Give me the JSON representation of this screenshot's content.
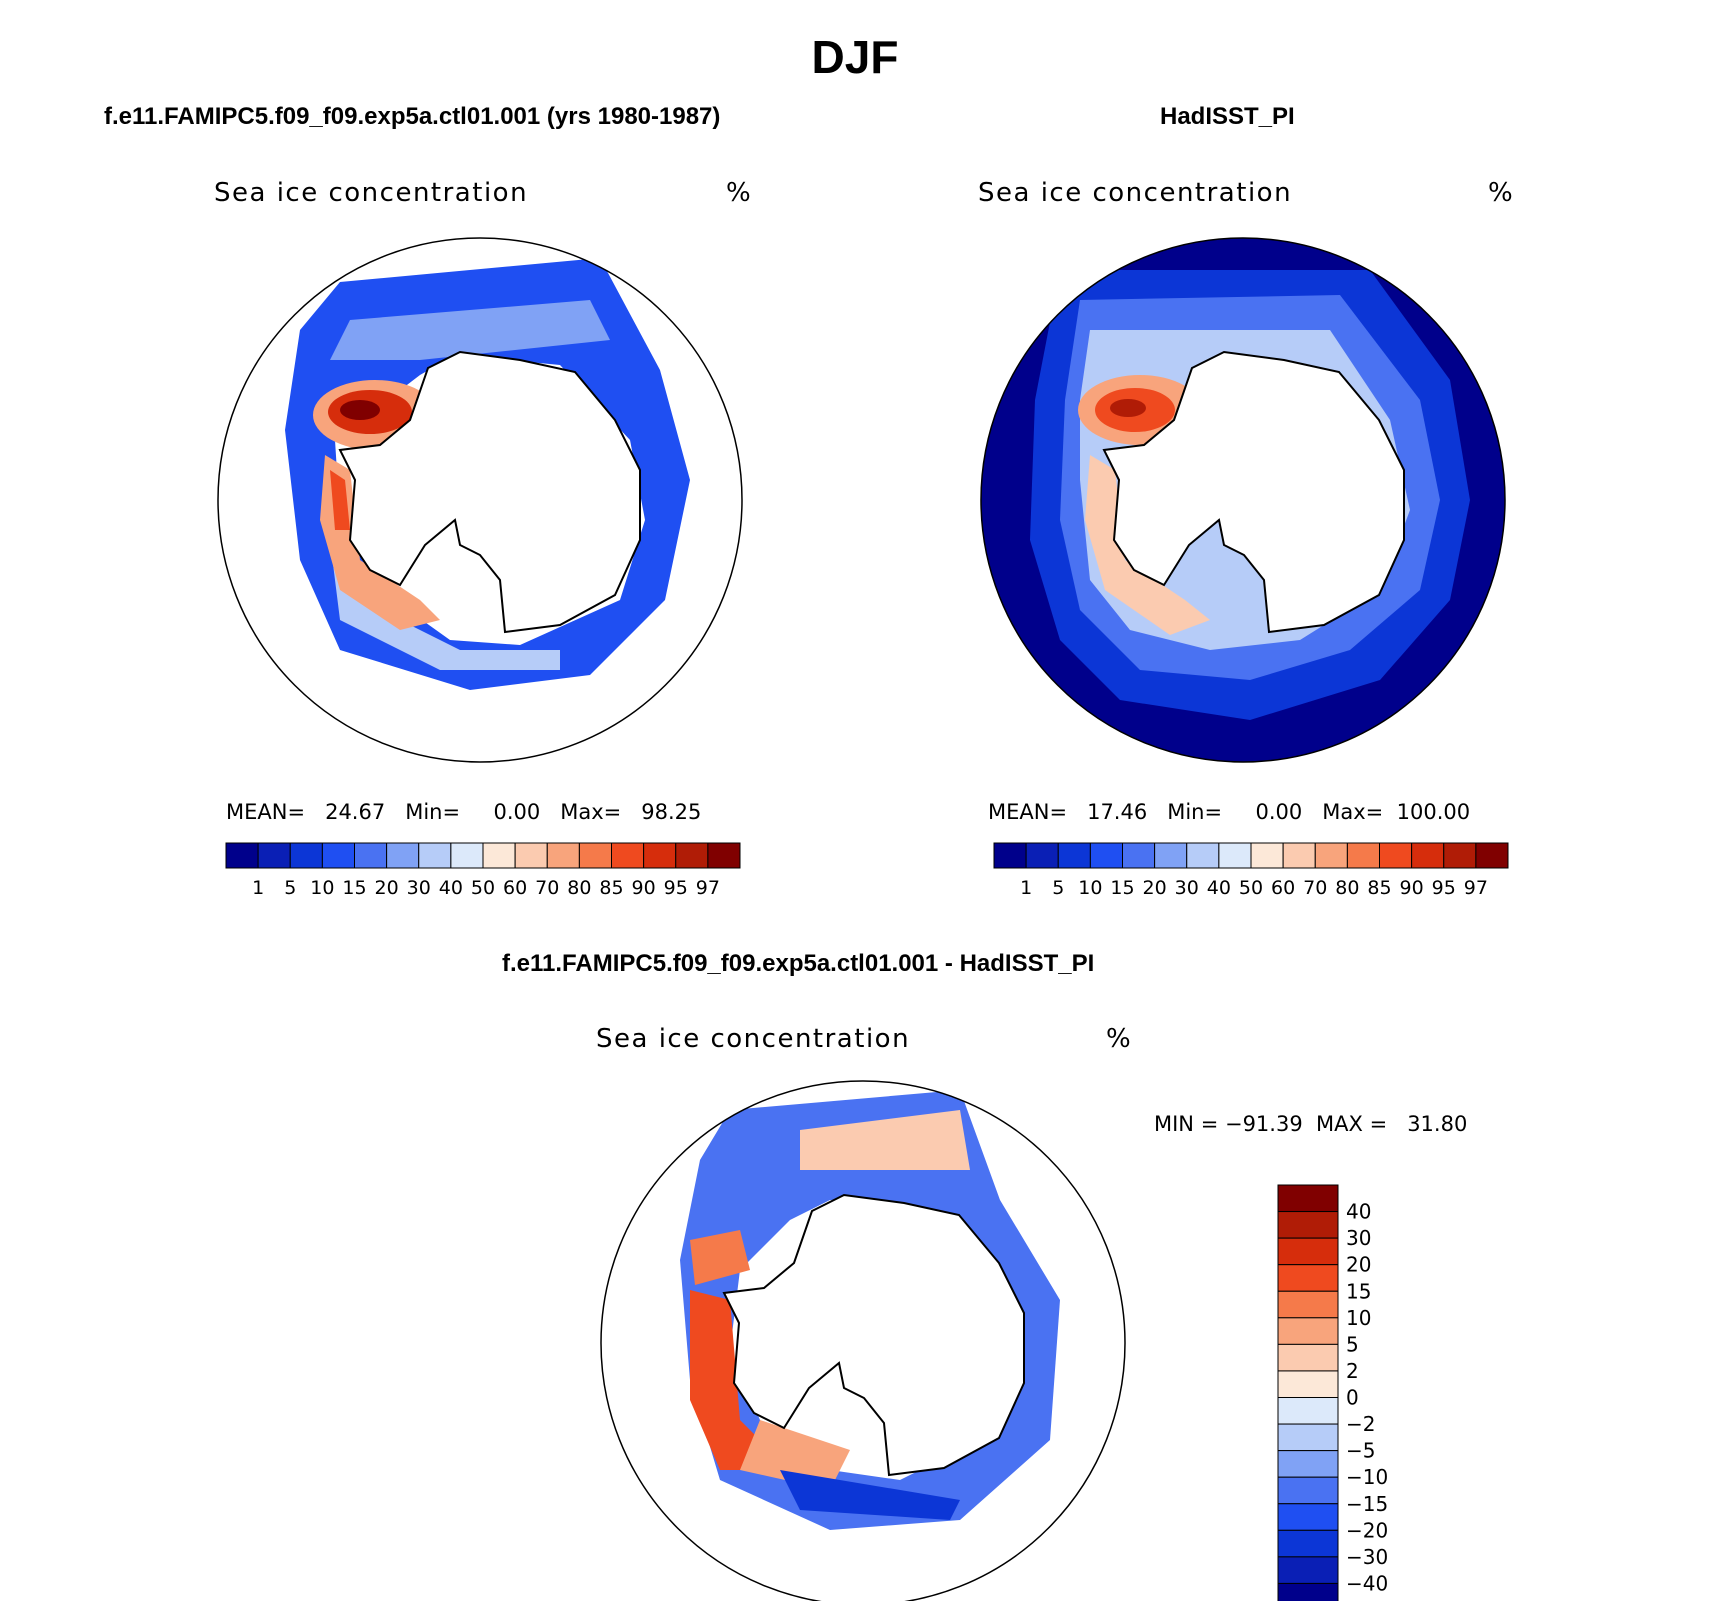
{
  "title": "DJF",
  "panels": [
    {
      "id": "model",
      "title": "f.e11.FAMIPC5.f09_f09.exp5a.ctl01.001 (yrs 1980-1987)",
      "variable": "Sea ice concentration",
      "units": "%",
      "stats": {
        "mean": "24.67",
        "min": "0.00",
        "max": "98.25"
      },
      "stats_text": "MEAN=   24.67   Min=     0.00   Max=   98.25"
    },
    {
      "id": "obs",
      "title": "HadISST_PI",
      "variable": "Sea ice concentration",
      "units": "%",
      "stats": {
        "mean": "17.46",
        "min": "0.00",
        "max": "100.00"
      },
      "stats_text": "MEAN=   17.46   Min=     0.00   Max=  100.00"
    },
    {
      "id": "diff",
      "title": "f.e11.FAMIPC5.f09_f09.exp5a.ctl01.001 - HadISST_PI",
      "variable": "Sea ice concentration",
      "units": "%",
      "stats": {
        "min": "-91.39",
        "max": "31.80"
      },
      "stats_text": "MIN = −91.39  MAX =   31.80"
    }
  ],
  "colorbar_abs": {
    "levels": [
      "1",
      "5",
      "10",
      "15",
      "20",
      "30",
      "40",
      "50",
      "60",
      "70",
      "80",
      "85",
      "90",
      "95",
      "97"
    ],
    "colors": [
      "#00008b",
      "#0a1fb5",
      "#0c36d6",
      "#1f4ff2",
      "#4a72f2",
      "#80a2f5",
      "#b6ccf8",
      "#dce9fa",
      "#fce8d8",
      "#fbcbb0",
      "#f8a47c",
      "#f57a4a",
      "#ef4a1f",
      "#d62d0c",
      "#b01c06",
      "#800000"
    ]
  },
  "colorbar_diff": {
    "levels": [
      "40",
      "30",
      "20",
      "15",
      "10",
      "5",
      "2",
      "0",
      "−2",
      "−5",
      "−10",
      "−15",
      "−20",
      "−30",
      "−40"
    ],
    "colors": [
      "#800000",
      "#b01c06",
      "#d62d0c",
      "#ef4a1f",
      "#f57a4a",
      "#f8a47c",
      "#fbcbb0",
      "#fce8d8",
      "#dce9fa",
      "#b6ccf8",
      "#80a2f5",
      "#4a72f2",
      "#1f4ff2",
      "#0c36d6",
      "#0a1fb5",
      "#00008b"
    ]
  }
}
